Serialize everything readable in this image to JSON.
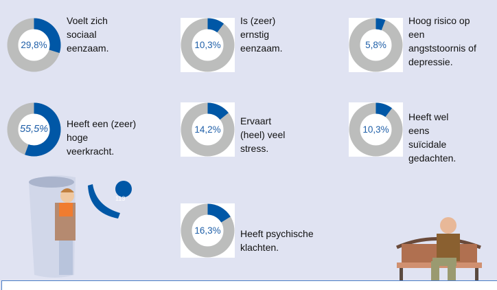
{
  "colors": {
    "value": "#0057a6",
    "rest": "#bcbdbc",
    "background": "#e0e3f2",
    "text_value": "#1f5fa8"
  },
  "chart_data": [
    {
      "type": "pie",
      "variant": "donut",
      "value": 29.8,
      "display": "29,8%",
      "label": "Voelt zich\nsociaal\neenzaam."
    },
    {
      "type": "pie",
      "variant": "donut",
      "value": 10.3,
      "display": "10,3%",
      "label": "Is (zeer)\nernstig\neenzaam."
    },
    {
      "type": "pie",
      "variant": "donut",
      "value": 5.8,
      "display": "5,8%",
      "label": "Hoog risico op\neen\nangststoornis of\ndepressie."
    },
    {
      "type": "pie",
      "variant": "donut",
      "value": 55.5,
      "display": "55,5%",
      "label": "Heeft een (zeer)\nhoge\nveerkracht."
    },
    {
      "type": "pie",
      "variant": "donut",
      "value": 14.2,
      "display": "14,2%",
      "label": "Ervaart\n(heel) veel\nstress."
    },
    {
      "type": "pie",
      "variant": "donut",
      "value": 10.3,
      "display": "10,3%",
      "label": "Heeft wel\neens\nsuïcidale\ngedachten."
    },
    {
      "type": "pie",
      "variant": "donut",
      "value": 16.3,
      "display": "16,3%",
      "label": "Heeft psychische\nklachten."
    }
  ],
  "illustration": {
    "phone_number": "113"
  }
}
